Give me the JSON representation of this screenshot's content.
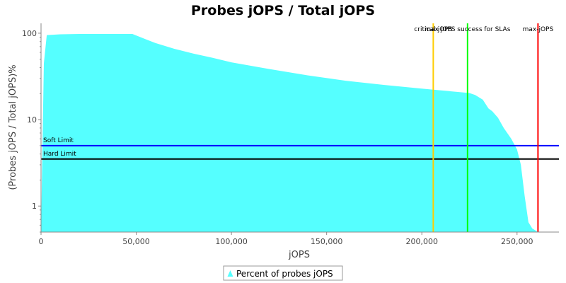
{
  "chart_data": {
    "type": "area",
    "title": "Probes jOPS / Total jOPS",
    "xlabel": "jOPS",
    "ylabel": "(Probes jOPS / Total jOPS)%",
    "y_scale": "log",
    "xlim": [
      0,
      272000
    ],
    "ylim": [
      0.5,
      130
    ],
    "x_ticks": [
      0,
      50000,
      100000,
      150000,
      200000,
      250000
    ],
    "x_tick_labels": [
      "0",
      "50,000",
      "100,000",
      "150,000",
      "200,000",
      "250,000"
    ],
    "y_ticks": [
      1,
      10,
      100
    ],
    "y_tick_labels": [
      "1",
      "10",
      "100"
    ],
    "grid": false,
    "legend_position": "bottom",
    "series": [
      {
        "name": "Percent of probes jOPS",
        "color": "#55ffff",
        "x": [
          0,
          1500,
          3000,
          10000,
          20000,
          30000,
          40000,
          48000,
          55000,
          60000,
          70000,
          80000,
          90000,
          100000,
          120000,
          140000,
          160000,
          180000,
          200000,
          220000,
          225000,
          228000,
          232000,
          235000,
          237000,
          240000,
          243000,
          247000,
          250000,
          252000,
          254000,
          256000,
          258000,
          261000,
          265000,
          270000
        ],
        "y": [
          0.5,
          45,
          95,
          97,
          98,
          98,
          98,
          98,
          85,
          77,
          66,
          58,
          52,
          46,
          38.5,
          32.5,
          28.2,
          25.2,
          22.8,
          20.8,
          20.3,
          19.3,
          17,
          13.5,
          12.5,
          10.5,
          8,
          6,
          4.5,
          3,
          1.3,
          0.65,
          0.55,
          0.5,
          0.5,
          0.5
        ]
      }
    ],
    "reference_lines": [
      {
        "axis": "y",
        "value": 5,
        "label": "Soft Limit",
        "color": "#0000ff"
      },
      {
        "axis": "y",
        "value": 3.5,
        "label": "Hard Limit",
        "color": "#000000"
      },
      {
        "axis": "x",
        "value": 206000,
        "label": "critical-jOPS",
        "color": "#ffcc00"
      },
      {
        "axis": "x",
        "value": 224000,
        "label": "max jOPS success for SLAs",
        "color": "#00ff00"
      },
      {
        "axis": "x",
        "value": 261000,
        "label": "max-jOPS",
        "color": "#ff0000"
      }
    ]
  }
}
